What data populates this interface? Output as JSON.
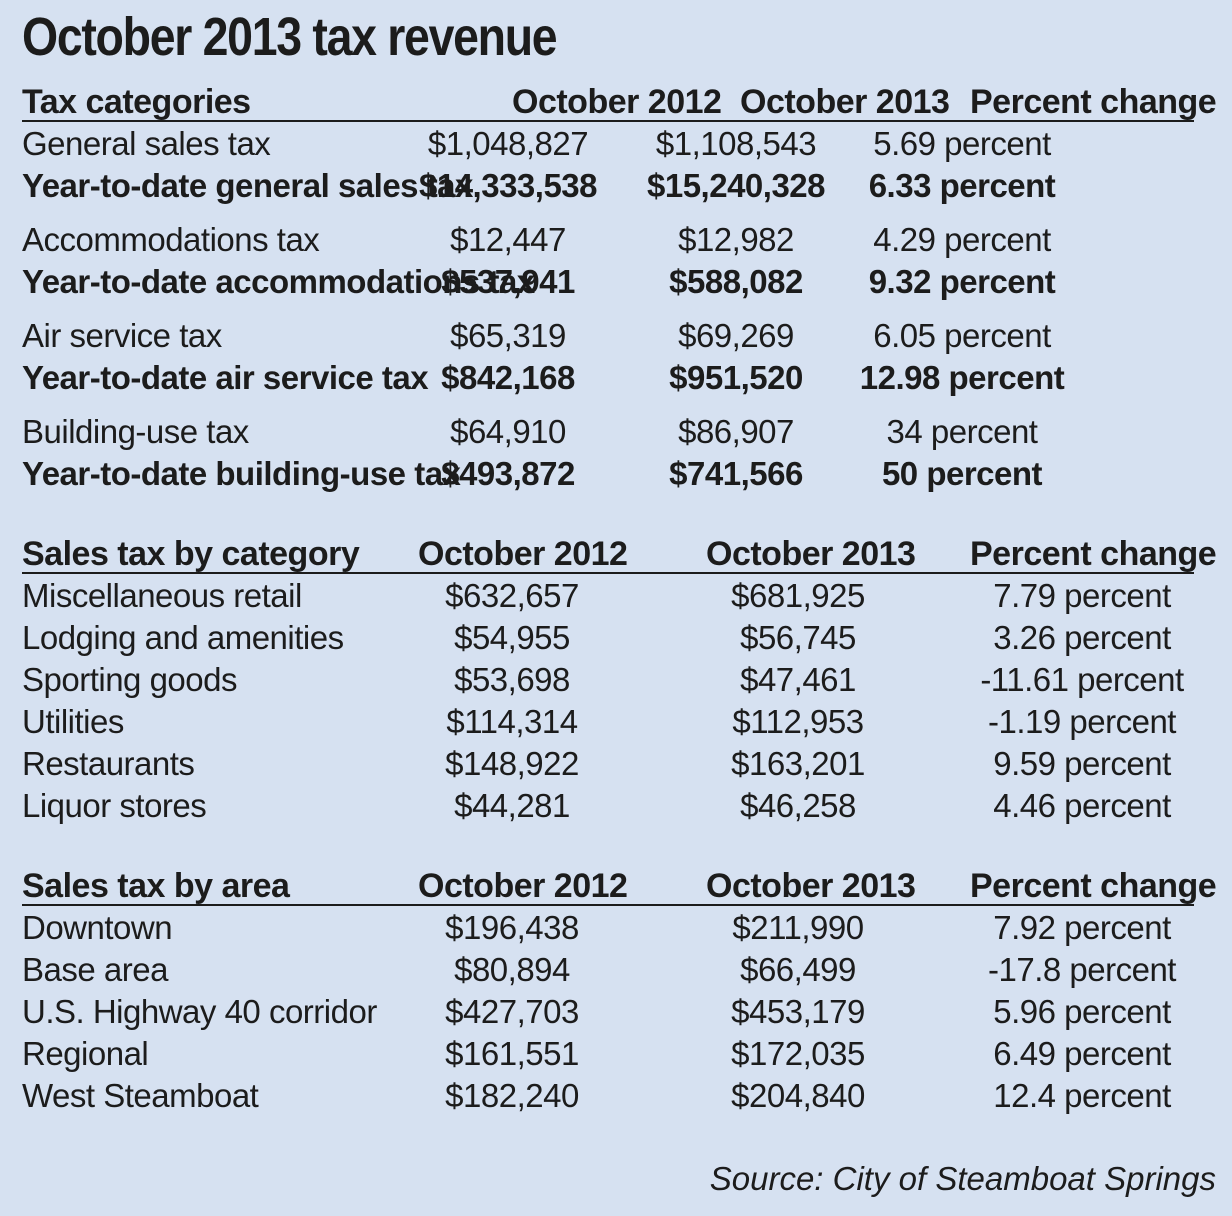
{
  "title": "October 2013 tax revenue",
  "section1": {
    "headers": [
      "Tax categories",
      "October 2012",
      "October 2013",
      "Percent change"
    ],
    "rows": [
      {
        "label": "General sales tax",
        "oct2012": "$1,048,827",
        "oct2013": "$1,108,543",
        "change": "5.69 percent",
        "bold": false
      },
      {
        "label": "Year-to-date general sales tax",
        "oct2012": "$14,333,538",
        "oct2013": "$15,240,328",
        "change": "6.33 percent",
        "bold": true
      },
      {
        "label": "Accommodations tax",
        "oct2012": "$12,447",
        "oct2013": "$12,982",
        "change": "4.29 percent",
        "bold": false
      },
      {
        "label": "Year-to-date accommodations tax",
        "oct2012": "$537,941",
        "oct2013": "$588,082",
        "change": "9.32 percent",
        "bold": true
      },
      {
        "label": "Air service tax",
        "oct2012": "$65,319",
        "oct2013": "$69,269",
        "change": "6.05 percent",
        "bold": false
      },
      {
        "label": "Year-to-date air service tax",
        "oct2012": "$842,168",
        "oct2013": "$951,520",
        "change": "12.98 percent",
        "bold": true
      },
      {
        "label": "Building-use tax",
        "oct2012": "$64,910",
        "oct2013": "$86,907",
        "change": "34 percent",
        "bold": false
      },
      {
        "label": "Year-to-date building-use tax",
        "oct2012": "$493,872",
        "oct2013": "$741,566",
        "change": "50 percent",
        "bold": true
      }
    ]
  },
  "section2": {
    "headers": [
      "Sales tax by category",
      "October 2012",
      "October 2013",
      "Percent change"
    ],
    "rows": [
      {
        "label": "Miscellaneous retail",
        "oct2012": "$632,657",
        "oct2013": "$681,925",
        "change": "7.79 percent"
      },
      {
        "label": "Lodging and amenities",
        "oct2012": "$54,955",
        "oct2013": "$56,745",
        "change": "3.26 percent"
      },
      {
        "label": "Sporting goods",
        "oct2012": "$53,698",
        "oct2013": "$47,461",
        "change": "-11.61 percent"
      },
      {
        "label": "Utilities",
        "oct2012": "$114,314",
        "oct2013": "$112,953",
        "change": "-1.19 percent"
      },
      {
        "label": "Restaurants",
        "oct2012": "$148,922",
        "oct2013": "$163,201",
        "change": "9.59 percent"
      },
      {
        "label": "Liquor stores",
        "oct2012": "$44,281",
        "oct2013": "$46,258",
        "change": "4.46 percent"
      }
    ]
  },
  "section3": {
    "headers": [
      "Sales tax by area",
      "October 2012",
      "October 2013",
      "Percent change"
    ],
    "rows": [
      {
        "label": "Downtown",
        "oct2012": "$196,438",
        "oct2013": "$211,990",
        "change": "7.92 percent"
      },
      {
        "label": "Base area",
        "oct2012": "$80,894",
        "oct2013": "$66,499",
        "change": "-17.8 percent"
      },
      {
        "label": "U.S. Highway 40 corridor",
        "oct2012": "$427,703",
        "oct2013": "$453,179",
        "change": "5.96 percent"
      },
      {
        "label": "Regional",
        "oct2012": "$161,551",
        "oct2013": "$172,035",
        "change": "6.49 percent"
      },
      {
        "label": "West Steamboat",
        "oct2012": "$182,240",
        "oct2013": "$204,840",
        "change": "12.4 percent"
      }
    ]
  },
  "source": "Source: City of Steamboat Springs"
}
